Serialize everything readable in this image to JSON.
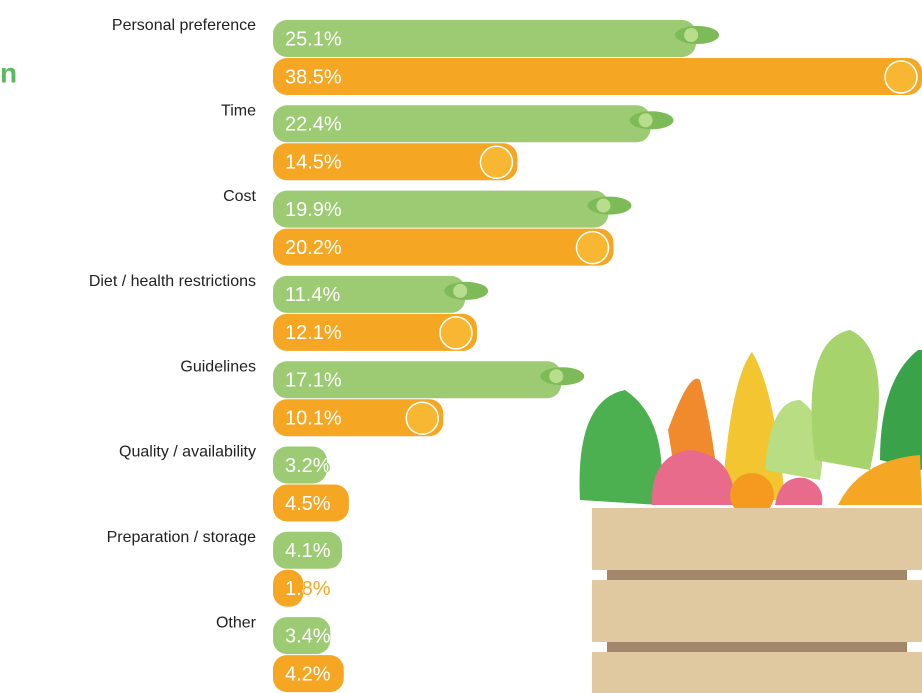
{
  "chart_data": {
    "type": "bar",
    "orientation": "horizontal",
    "annotations": [
      "n"
    ],
    "categories": [
      "Personal preference",
      "Time",
      "Cost",
      "Diet / health restrictions",
      "Guidelines",
      "Quality / availability",
      "Preparation / storage",
      "Other"
    ],
    "series": [
      {
        "color": "#9ccb74",
        "values": [
          25.1,
          22.4,
          19.9,
          11.4,
          17.1,
          3.2,
          4.1,
          3.4
        ],
        "value_labels": [
          "25.1%",
          "22.4%",
          "19.9%",
          "11.4%",
          "17.1%",
          "3.2%",
          "4.1%",
          "3.4%"
        ]
      },
      {
        "color": "#f5a623",
        "values": [
          38.5,
          14.5,
          20.2,
          12.1,
          10.1,
          4.5,
          1.8,
          4.2
        ],
        "value_labels": [
          "38.5%",
          "14.5%",
          "20.2%",
          "12.1%",
          "10.1%",
          "4.5%",
          "1.8%",
          "4.2%"
        ]
      }
    ],
    "xlim": [
      0,
      38.5
    ]
  }
}
